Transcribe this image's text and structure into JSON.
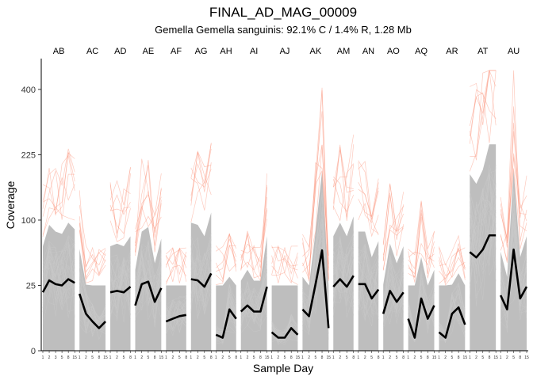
{
  "chart_data": {
    "type": "line",
    "title": "FINAL_AD_MAG_00009",
    "subtitle": "Gemella Gemella sanguinis: 92.1% C / 1.4% R, 1.28 Mb",
    "xlabel": "Sample Day",
    "ylabel": "Coverage",
    "y_scale": "sqrt",
    "ylim": [
      0,
      500
    ],
    "y_ticks": [
      0,
      25,
      100,
      225,
      400
    ],
    "colors": {
      "background_lines": "#b3b3b3",
      "highlight_lines": "#fa8a6f",
      "median_line": "#000000",
      "axis": "#000000"
    },
    "facets": [
      {
        "label": "AB",
        "days": [
          "1",
          "2",
          "3",
          "5",
          "8",
          "15"
        ],
        "median": [
          20,
          29,
          26,
          25,
          30,
          27
        ]
      },
      {
        "label": "AC",
        "days": [
          "1",
          "2",
          "5",
          "8",
          "15"
        ],
        "median": [
          19,
          8,
          5,
          3,
          5
        ]
      },
      {
        "label": "AD",
        "days": [
          "1",
          "2",
          "5",
          "8"
        ],
        "median": [
          20,
          21,
          20,
          24
        ]
      },
      {
        "label": "AE",
        "days": [
          "1",
          "2",
          "5",
          "8",
          "15"
        ],
        "median": [
          12,
          26,
          28,
          14,
          23
        ]
      },
      {
        "label": "AF",
        "days": [
          "1",
          "2",
          "5",
          "8"
        ],
        "median": [
          5,
          6,
          7,
          7.5
        ]
      },
      {
        "label": "AG",
        "days": [
          "1",
          "2",
          "5",
          "8"
        ],
        "median": [
          30,
          29,
          24,
          35
        ]
      },
      {
        "label": "AH",
        "days": [
          "1",
          "2",
          "5",
          "8"
        ],
        "median": [
          1.5,
          1,
          10,
          6
        ]
      },
      {
        "label": "AI",
        "days": [
          "1",
          "2",
          "5",
          "8",
          "15"
        ],
        "median": [
          9,
          12,
          9,
          9,
          24
        ]
      },
      {
        "label": "AJ",
        "days": [
          "1",
          "2",
          "5",
          "8",
          "15"
        ],
        "median": [
          2,
          1,
          1,
          3,
          1.5
        ]
      },
      {
        "label": "AK",
        "days": [
          "1",
          "2",
          "5",
          "8",
          "15"
        ],
        "median": [
          10,
          7,
          26,
          59,
          3
        ]
      },
      {
        "label": "AM",
        "days": [
          "1",
          "2",
          "5",
          "8"
        ],
        "median": [
          24,
          30,
          24,
          33
        ]
      },
      {
        "label": "AN",
        "days": [
          "1",
          "2",
          "5",
          "8"
        ],
        "median": [
          26,
          26,
          16,
          22
        ]
      },
      {
        "label": "AO",
        "days": [
          "1",
          "2",
          "5",
          "8"
        ],
        "median": [
          8,
          21,
          14,
          20
        ]
      },
      {
        "label": "AQ",
        "days": [
          "1",
          "2",
          "5",
          "8",
          "15"
        ],
        "median": [
          6,
          1,
          16,
          6,
          12
        ]
      },
      {
        "label": "AR",
        "days": [
          "1",
          "2",
          "5",
          "8",
          "15"
        ],
        "median": [
          2,
          1,
          8,
          11,
          4
        ]
      },
      {
        "label": "AT",
        "days": [
          "1",
          "2",
          "5",
          "8",
          "15"
        ],
        "median": [
          57,
          51,
          60,
          78,
          78
        ]
      },
      {
        "label": "AU",
        "days": [
          "1",
          "2",
          "5",
          "8",
          "15"
        ],
        "median": [
          18,
          10,
          60,
          16,
          24
        ]
      }
    ]
  }
}
